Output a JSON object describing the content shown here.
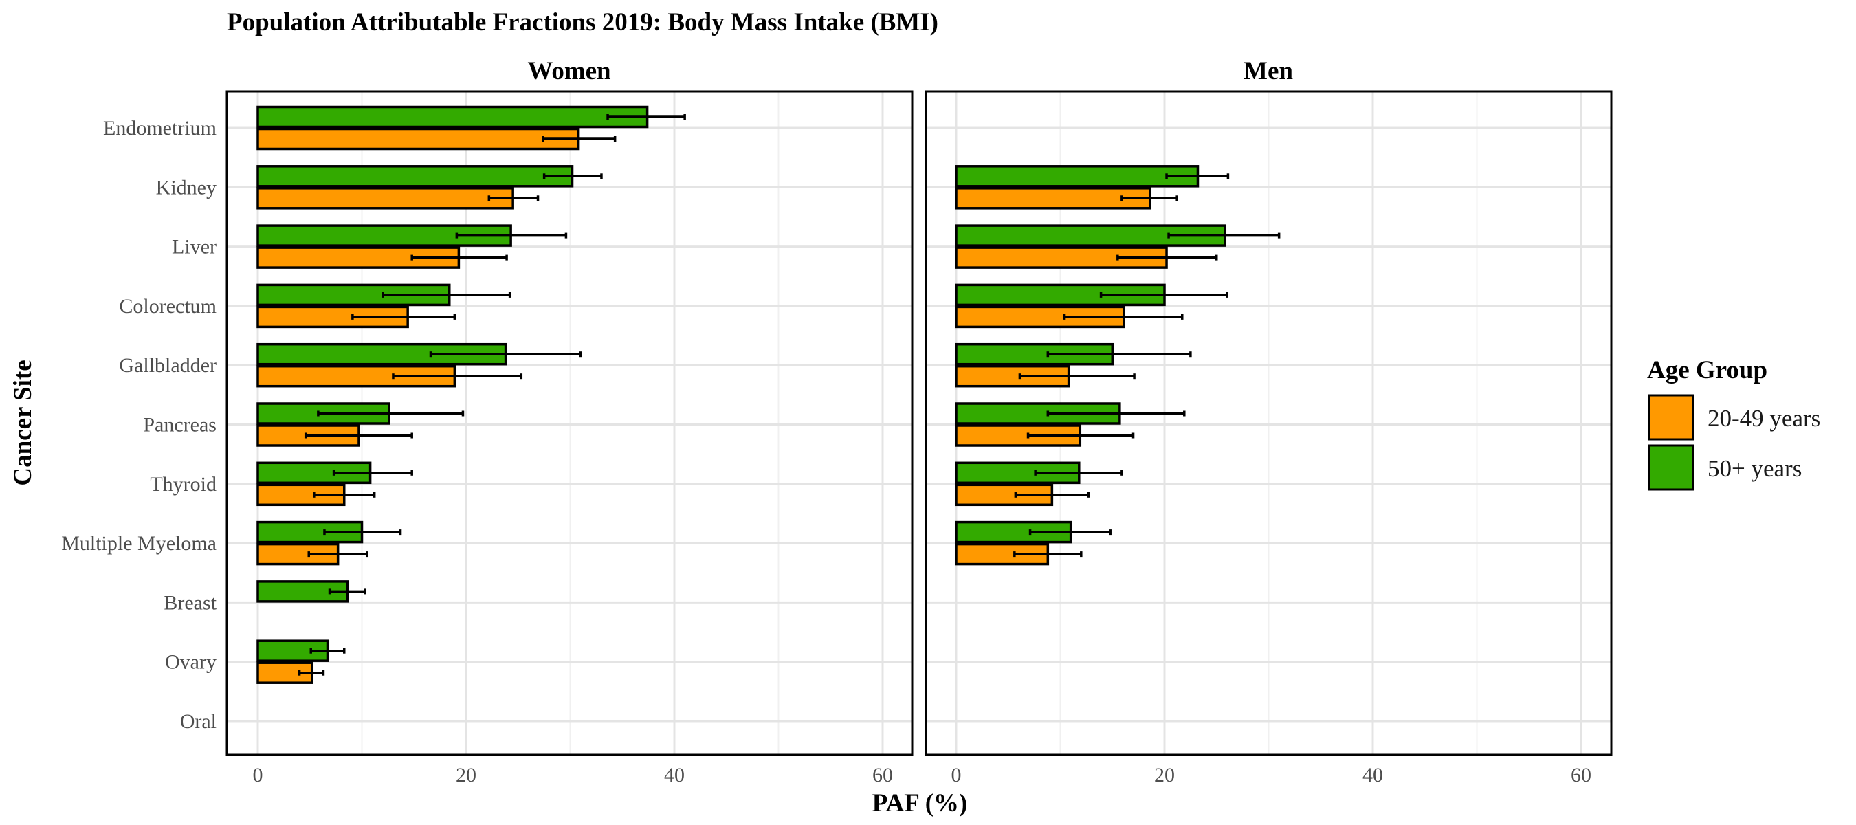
{
  "chart_data": {
    "type": "bar",
    "orientation": "horizontal",
    "title": "Population Attributable Fractions 2019: Body Mass Intake (BMI)",
    "xlabel": "PAF (%)",
    "ylabel": "Cancer Site",
    "xlim": [
      0,
      60
    ],
    "xticks": [
      "0",
      "20",
      "40",
      "60"
    ],
    "grid": true,
    "categories": [
      "Endometrium",
      "Kidney",
      "Liver",
      "Colorectum",
      "Gallbladder",
      "Pancreas",
      "Thyroid",
      "Multiple Myeloma",
      "Breast",
      "Ovary",
      "Oral"
    ],
    "legend": {
      "title": "Age Group",
      "position": "right",
      "items": [
        {
          "label": "20-49 years",
          "color": "#ff9900"
        },
        {
          "label": "50+ years",
          "color": "#33aa00"
        }
      ]
    },
    "panels": [
      {
        "name": "Women",
        "series": [
          {
            "group": "20-49 years",
            "values": [
              30.8,
              24.5,
              19.3,
              14.4,
              18.9,
              9.7,
              8.3,
              7.7,
              0,
              5.2,
              0
            ],
            "lower": [
              27.4,
              22.2,
              14.8,
              9.1,
              13.0,
              4.6,
              5.4,
              4.9,
              0,
              4.0,
              0
            ],
            "upper": [
              34.3,
              26.9,
              23.9,
              18.9,
              25.3,
              14.8,
              11.2,
              10.5,
              0,
              6.3,
              0
            ]
          },
          {
            "group": "50+ years",
            "values": [
              37.4,
              30.2,
              24.3,
              18.4,
              23.8,
              12.6,
              10.8,
              10.0,
              8.6,
              6.7,
              0
            ],
            "lower": [
              33.6,
              27.5,
              19.1,
              12.0,
              16.6,
              5.8,
              7.3,
              6.4,
              6.9,
              5.1,
              0
            ],
            "upper": [
              41.0,
              33.0,
              29.6,
              24.2,
              31.0,
              19.7,
              14.8,
              13.7,
              10.3,
              8.3,
              0
            ]
          }
        ]
      },
      {
        "name": "Men",
        "series": [
          {
            "group": "20-49 years",
            "values": [
              0,
              18.6,
              20.2,
              16.1,
              10.8,
              11.9,
              9.2,
              8.8,
              0,
              0,
              0
            ],
            "lower": [
              0,
              15.9,
              15.5,
              10.4,
              6.1,
              6.9,
              5.7,
              5.6,
              0,
              0,
              0
            ],
            "upper": [
              0,
              21.2,
              25.0,
              21.7,
              17.1,
              17.0,
              12.7,
              12.0,
              0,
              0,
              0
            ]
          },
          {
            "group": "50+ years",
            "values": [
              0,
              23.2,
              25.8,
              20.0,
              15.0,
              15.7,
              11.8,
              11.0,
              0,
              0,
              0
            ],
            "lower": [
              0,
              20.2,
              20.4,
              13.9,
              8.8,
              8.8,
              7.6,
              7.1,
              0,
              0,
              0
            ],
            "upper": [
              0,
              26.1,
              31.0,
              26.0,
              22.5,
              21.9,
              15.9,
              14.8,
              0,
              0,
              0
            ]
          }
        ]
      }
    ]
  }
}
